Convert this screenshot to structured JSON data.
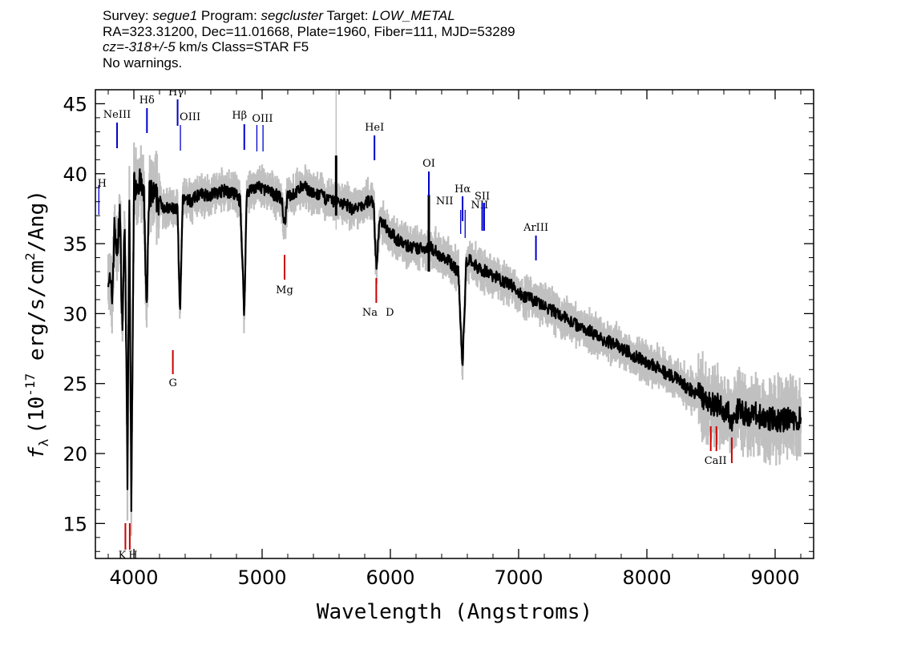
{
  "header": {
    "survey_key": "Survey:",
    "survey": "segue1",
    "program_key": "Program:",
    "program": "segcluster",
    "target_key": "Target:",
    "target": "LOW_METAL",
    "line2": "RA=323.31200, Dec=11.01668, Plate=1960, Fiber=111, MJD=53289",
    "cz_key": "cz=",
    "cz": "-318+/-5",
    "cz_unit_class": "km/s Class=STAR F5",
    "warnings": "No warnings."
  },
  "chart_data": {
    "type": "line",
    "title": "",
    "xlabel": "Wavelength (Angstroms)",
    "ylabel": "f_λ (10^-17 erg/s/cm^2/Ang)",
    "ylabel_parts": {
      "flambda": "f",
      "lambda_sub": "λ",
      "open": "(10",
      "exp": "-17",
      "mid": " erg/s/cm",
      "sq": "2",
      "close": "/Ang)"
    },
    "xlim": [
      3700,
      9300
    ],
    "ylim": [
      12.5,
      46
    ],
    "xticks": [
      4000,
      5000,
      6000,
      7000,
      8000,
      9000
    ],
    "yticks": [
      15,
      20,
      25,
      30,
      35,
      40,
      45
    ],
    "colors": {
      "flux": "#000000",
      "error": "#c0c0c0",
      "emission": "#0000cc",
      "absorption": "#cc0000"
    },
    "flux": {
      "x": [
        3800,
        3830,
        3850,
        3870,
        3890,
        3910,
        3930,
        3950,
        3965,
        3980,
        4000,
        4030,
        4060,
        4080,
        4100,
        4120,
        4150,
        4200,
        4250,
        4300,
        4340,
        4360,
        4380,
        4400,
        4450,
        4500,
        4600,
        4700,
        4800,
        4830,
        4861,
        4880,
        4900,
        4950,
        5000,
        5050,
        5100,
        5150,
        5175,
        5200,
        5250,
        5300,
        5350,
        5400,
        5450,
        5500,
        5550,
        5600,
        5650,
        5700,
        5750,
        5800,
        5850,
        5870,
        5880,
        5893,
        5905,
        5920,
        5950,
        6000,
        6050,
        6100,
        6150,
        6200,
        6250,
        6300,
        6350,
        6400,
        6450,
        6500,
        6530,
        6563,
        6590,
        6620,
        6650,
        6700,
        6750,
        6800,
        6850,
        6900,
        6950,
        7000,
        7050,
        7100,
        7150,
        7200,
        7250,
        7300,
        7350,
        7400,
        7450,
        7500,
        7550,
        7600,
        7650,
        7700,
        7750,
        7800,
        7850,
        7900,
        7950,
        8000,
        8050,
        8100,
        8150,
        8200,
        8250,
        8300,
        8350,
        8400,
        8450,
        8500,
        8550,
        8600,
        8662,
        8700,
        8750,
        8800,
        8850,
        8900,
        8950,
        9000,
        9050,
        9100,
        9150,
        9200
      ],
      "y": [
        33,
        31,
        36.5,
        34,
        37.5,
        29,
        37,
        18,
        38.5,
        16,
        39,
        39.5,
        39,
        38,
        30,
        38.5,
        38.5,
        38,
        37.5,
        37.5,
        37.5,
        29.5,
        38,
        38.3,
        38,
        38.5,
        38.5,
        38.8,
        38.5,
        38,
        29.8,
        38.7,
        38.8,
        39,
        39,
        38.7,
        38.5,
        38.3,
        36.3,
        38.5,
        38.5,
        39,
        39,
        38.5,
        38.5,
        38.2,
        38,
        38,
        37.8,
        37.5,
        37.5,
        37.8,
        38.2,
        37.8,
        35.5,
        33,
        35.5,
        36.5,
        36.5,
        35.8,
        35.3,
        35,
        34.8,
        34.6,
        34.7,
        34.8,
        34.5,
        34,
        33.8,
        33.3,
        33,
        26,
        33.5,
        34,
        33.5,
        33.2,
        33,
        32.7,
        32.5,
        32.2,
        32,
        31.5,
        31.2,
        31,
        30.8,
        30.5,
        30.3,
        30,
        29.8,
        29.5,
        29.2,
        29,
        28.8,
        28.5,
        28.2,
        28,
        27.8,
        27.5,
        27.3,
        27,
        26.8,
        26.5,
        26.3,
        26,
        25.7,
        25.5,
        25.2,
        24.8,
        24.5,
        24.2,
        24,
        23.5,
        23.5,
        23.2,
        22.5,
        23,
        23,
        22.7,
        22.8,
        22.5,
        22.5,
        22.5,
        22.3,
        22.5,
        22.3,
        22.5
      ]
    },
    "spikes": [
      {
        "x": 5577,
        "lo": 36,
        "hi": 46
      },
      {
        "x": 5577,
        "lo": 37,
        "hi": 41.3
      },
      {
        "x": 6300,
        "lo": 33,
        "hi": 38.5
      }
    ],
    "emission_lines": [
      {
        "label": "H",
        "x": 3727
      },
      {
        "label": "NeIII",
        "x": 3869
      },
      {
        "label": "Hδ",
        "x": 4102
      },
      {
        "label": "Hγ",
        "x": 4341
      },
      {
        "label": "OIII",
        "x": 4363
      },
      {
        "label": "Hβ",
        "x": 4861
      },
      {
        "label": "OIII",
        "x": 4959
      },
      {
        "label": "OIII",
        "x": 5007
      },
      {
        "label": "HeI",
        "x": 5876
      },
      {
        "label": "OI",
        "x": 6300
      },
      {
        "label": "NII",
        "x": 6548
      },
      {
        "label": "Hα",
        "x": 6563
      },
      {
        "label": "NII",
        "x": 6583
      },
      {
        "label": "SII",
        "x": 6716
      },
      {
        "label": "SII",
        "x": 6731
      },
      {
        "label": "ArIII",
        "x": 7135
      }
    ],
    "absorption_lines": [
      {
        "label": "K",
        "x": 3934
      },
      {
        "label": "H",
        "x": 3968
      },
      {
        "label": "G",
        "x": 4304
      },
      {
        "label": "Mg",
        "x": 5175
      },
      {
        "label": "Na",
        "x": 5890
      },
      {
        "label": "D",
        "x": 5896
      },
      {
        "label": "CaII",
        "x": 8498
      },
      {
        "label": "CaII",
        "x": 8542
      },
      {
        "label": "CaII",
        "x": 8662
      }
    ]
  }
}
